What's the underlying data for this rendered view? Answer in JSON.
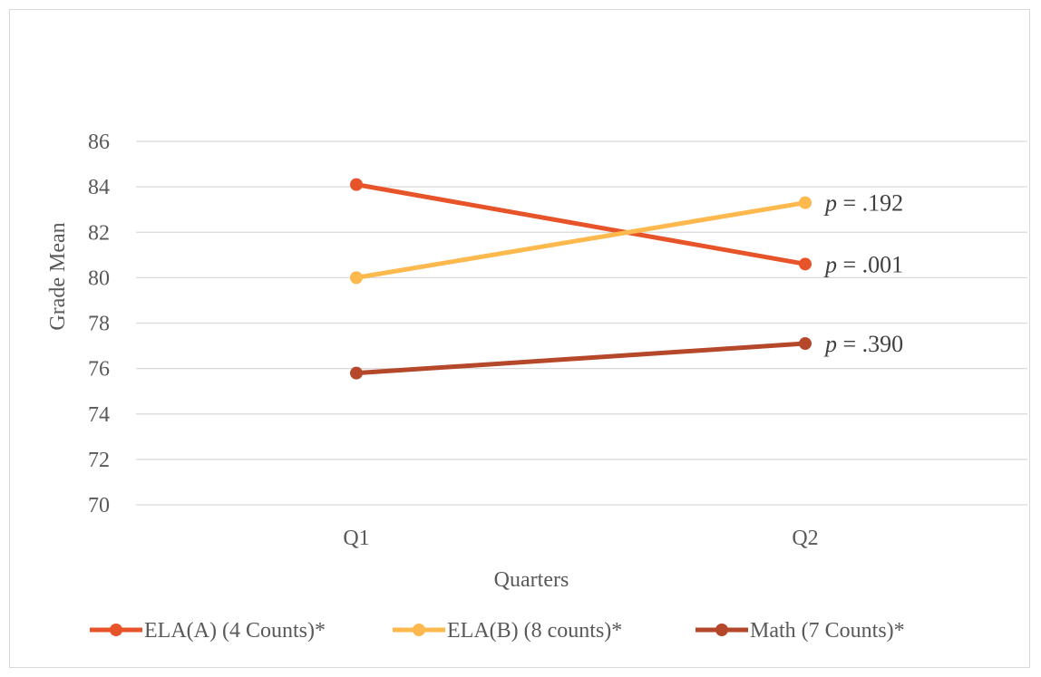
{
  "chart_data": {
    "type": "line",
    "title": "",
    "xlabel": "Quarters",
    "ylabel": "Grade Mean",
    "categories": [
      "Q1",
      "Q2"
    ],
    "ylim": [
      70,
      86
    ],
    "yticks": [
      70,
      72,
      74,
      76,
      78,
      80,
      82,
      84,
      86
    ],
    "grid": true,
    "legend_position": "bottom",
    "series": [
      {
        "name": "ELA(A) (4 Counts)*",
        "values": [
          84.1,
          80.6
        ],
        "color": "#E8542A",
        "annotation_p": "p",
        "annotation_rest": " = .001"
      },
      {
        "name": "ELA(B) (8 counts)*",
        "values": [
          80.0,
          83.3
        ],
        "color": "#FDB94D",
        "annotation_p": "p",
        "annotation_rest": " = .192"
      },
      {
        "name": "Math (7 Counts)*",
        "values": [
          75.8,
          77.1
        ],
        "color": "#B5482A",
        "annotation_p": "p",
        "annotation_rest": " = .390"
      }
    ]
  }
}
